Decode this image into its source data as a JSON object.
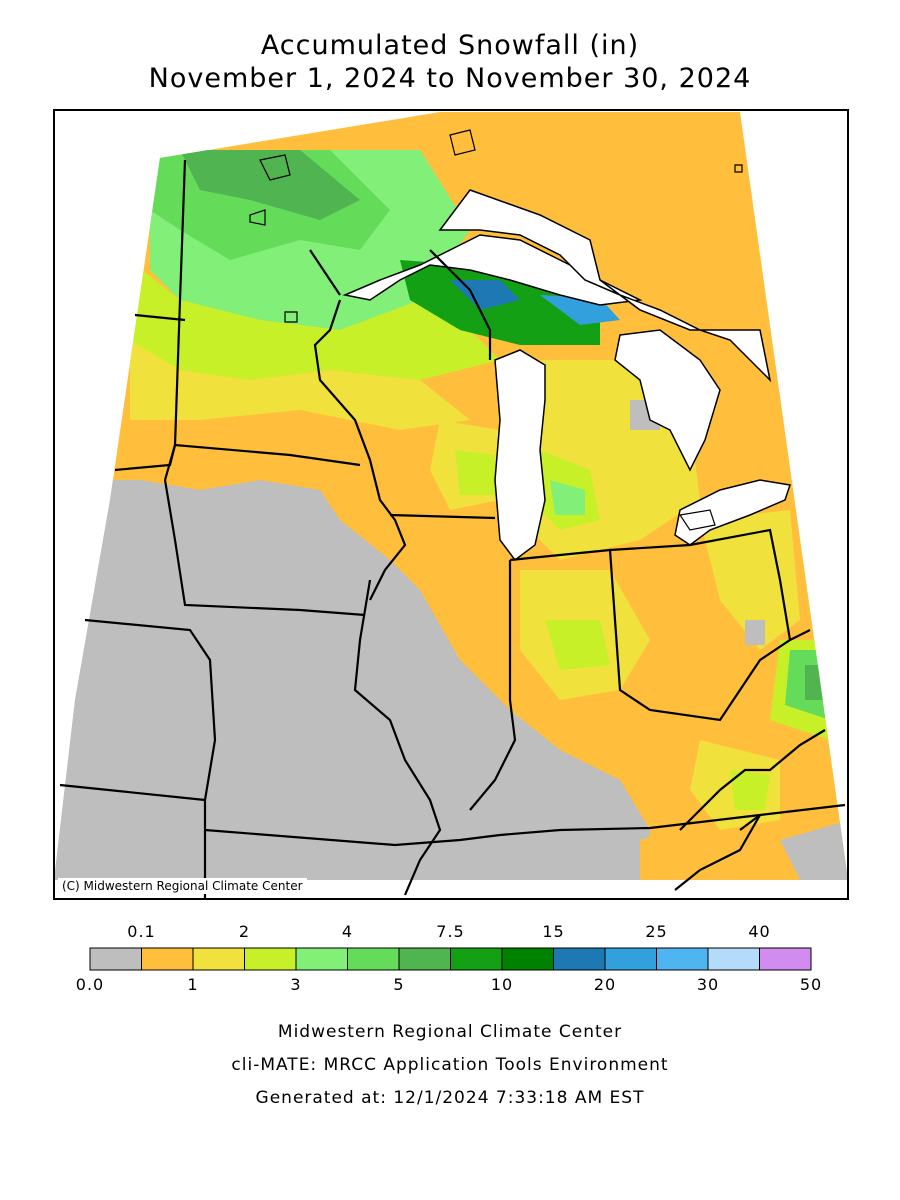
{
  "title": "Accumulated Snowfall (in)",
  "subtitle": "November 1, 2024 to November 30, 2024",
  "copyright": "(C) Midwestern Regional Climate Center",
  "legend": {
    "upper_labels": [
      "0.1",
      "2",
      "4",
      "7.5",
      "15",
      "25",
      "40"
    ],
    "lower_labels": [
      "0.0",
      "1",
      "3",
      "5",
      "10",
      "20",
      "30",
      "50"
    ],
    "colors": [
      "#bebebe",
      "#ffbe3c",
      "#f0e13c",
      "#c8f028",
      "#82f078",
      "#64dc5a",
      "#50b450",
      "#14a014",
      "#008200",
      "#1e78b4",
      "#32a0dc",
      "#50b4f0",
      "#b4dcfa",
      "#d28cf0"
    ]
  },
  "footer": {
    "line1": "Midwestern Regional Climate Center",
    "line2": "cli-MATE: MRCC Application Tools Environment",
    "line3": "Generated at: 12/1/2024 7:33:18 AM EST"
  },
  "colors": {
    "none": "#bebebe",
    "trace_1": "#ffbe3c",
    "lake": "#ffffff",
    "border": "#000000"
  }
}
